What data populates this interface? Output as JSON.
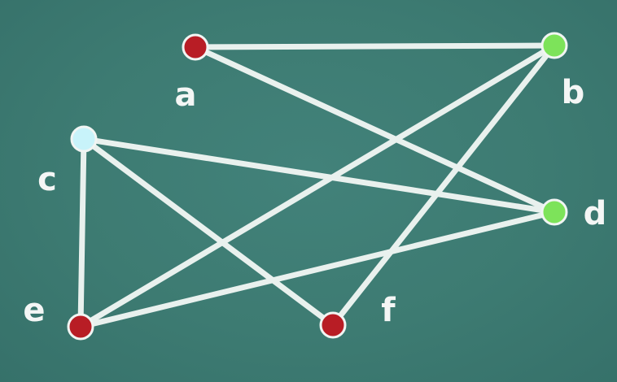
{
  "graph": {
    "nodes": [
      {
        "id": "a",
        "label": "a",
        "color": "#b81d25"
      },
      {
        "id": "b",
        "label": "b",
        "color": "#7de35a"
      },
      {
        "id": "c",
        "label": "c",
        "color": "#c8f3fa"
      },
      {
        "id": "d",
        "label": "d",
        "color": "#7de35a"
      },
      {
        "id": "e",
        "label": "e",
        "color": "#b81d25"
      },
      {
        "id": "f",
        "label": "f",
        "color": "#b81d25"
      }
    ],
    "edges": [
      [
        "a",
        "b"
      ],
      [
        "a",
        "d"
      ],
      [
        "b",
        "e"
      ],
      [
        "b",
        "f"
      ],
      [
        "c",
        "d"
      ],
      [
        "c",
        "e"
      ],
      [
        "c",
        "f"
      ],
      [
        "d",
        "e"
      ]
    ]
  },
  "colors": {
    "background": "#3e7c73",
    "edge": "#e9f1ee",
    "label": "#f4f6f5"
  }
}
